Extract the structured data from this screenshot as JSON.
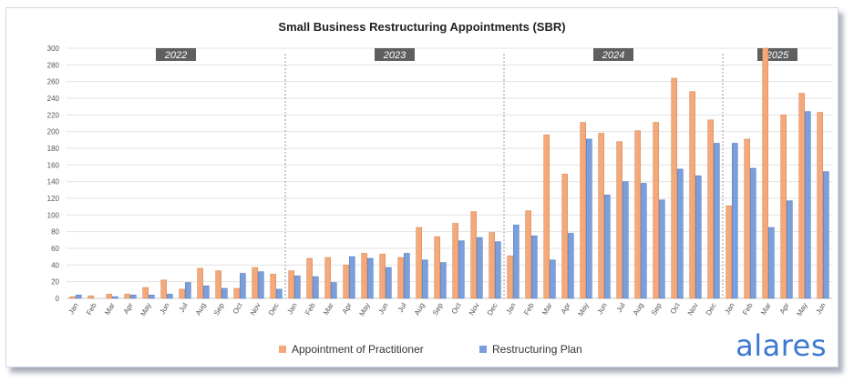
{
  "brand": {
    "logo_text": "alares",
    "logo_color": "#3d79cf"
  },
  "chart_data": {
    "type": "bar",
    "title": "Small Business Restructuring Appointments (SBR)",
    "ylim": [
      0,
      300
    ],
    "yticks": [
      0,
      20,
      40,
      60,
      80,
      100,
      120,
      140,
      160,
      180,
      200,
      220,
      240,
      260,
      280,
      300
    ],
    "grid": true,
    "legend_position": "bottom",
    "year_labels": [
      "2022",
      "2023",
      "2024",
      "2025"
    ],
    "year_month_counts": [
      12,
      12,
      12,
      6
    ],
    "categories": [
      "Jan",
      "Feb",
      "Mar",
      "Apr",
      "May",
      "Jun",
      "Jul",
      "Aug",
      "Sep",
      "Oct",
      "Nov",
      "Dec",
      "Jan",
      "Feb",
      "Mar",
      "Apr",
      "May",
      "Jun",
      "Jul",
      "Aug",
      "Sep",
      "Oct",
      "Nov",
      "Dec",
      "Jan",
      "Feb",
      "Mar",
      "Apr",
      "May",
      "Jun",
      "Jul",
      "Aug",
      "Sep",
      "Oct",
      "Nov",
      "Dec",
      "Jan",
      "Feb",
      "Mar",
      "Apr",
      "May",
      "Jun"
    ],
    "series": [
      {
        "name": "Appointment of Practitioner",
        "color": "#f4a97a",
        "values": [
          2,
          3,
          5,
          5,
          13,
          22,
          11,
          36,
          33,
          12,
          37,
          29,
          33,
          48,
          49,
          40,
          54,
          53,
          49,
          85,
          74,
          90,
          104,
          79,
          51,
          105,
          196,
          149,
          211,
          198,
          188,
          201,
          211,
          264,
          248,
          214,
          111,
          191,
          300,
          220,
          246,
          223
        ]
      },
      {
        "name": "Restructuring Plan",
        "color": "#7a9fdc",
        "values": [
          4,
          0,
          2,
          4,
          4,
          5,
          19,
          15,
          12,
          30,
          32,
          11,
          27,
          26,
          19,
          50,
          48,
          37,
          54,
          46,
          43,
          69,
          73,
          68,
          88,
          75,
          46,
          78,
          191,
          124,
          140,
          138,
          118,
          155,
          147,
          186,
          186,
          156,
          85,
          117,
          224,
          152
        ]
      }
    ]
  }
}
